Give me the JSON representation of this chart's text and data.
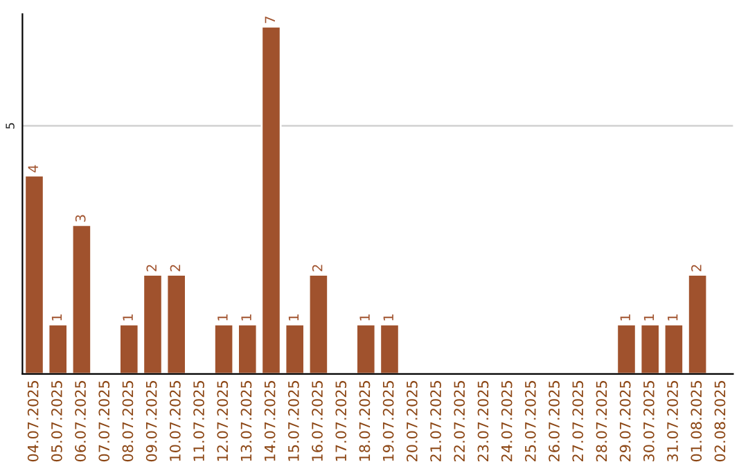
{
  "chart_data": {
    "type": "bar",
    "categories": [
      "04.07.2025",
      "05.07.2025",
      "06.07.2025",
      "07.07.2025",
      "08.07.2025",
      "09.07.2025",
      "10.07.2025",
      "11.07.2025",
      "12.07.2025",
      "13.07.2025",
      "14.07.2025",
      "15.07.2025",
      "16.07.2025",
      "17.07.2025",
      "18.07.2025",
      "19.07.2025",
      "20.07.2025",
      "21.07.2025",
      "22.07.2025",
      "23.07.2025",
      "24.07.2025",
      "25.07.2025",
      "26.07.2025",
      "27.07.2025",
      "28.07.2025",
      "29.07.2025",
      "30.07.2025",
      "31.07.2025",
      "01.08.2025",
      "02.08.2025"
    ],
    "values": [
      4,
      1,
      3,
      0,
      1,
      2,
      2,
      0,
      1,
      1,
      7,
      1,
      2,
      0,
      1,
      1,
      0,
      0,
      0,
      0,
      0,
      0,
      0,
      0,
      0,
      1,
      1,
      1,
      2,
      0
    ],
    "value_labels": [
      "4",
      "1",
      "3",
      null,
      "1",
      "2",
      "2",
      null,
      "1",
      "1",
      "7",
      "1",
      "2",
      null,
      "1",
      "1",
      null,
      null,
      null,
      null,
      null,
      null,
      null,
      null,
      null,
      "1",
      "1",
      "1",
      "2",
      null
    ],
    "color": "#a0522d",
    "ylim": [
      0,
      7.25
    ],
    "yticks": [
      5
    ],
    "grid": "y"
  }
}
